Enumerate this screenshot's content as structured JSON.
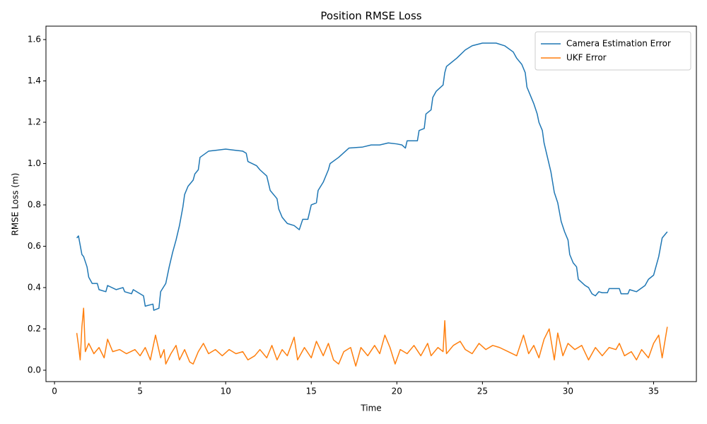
{
  "chart_data": {
    "type": "line",
    "title": "Position RMSE Loss",
    "x_label": "Time",
    "y_label": "RMSE Loss (m)",
    "legend": "upper right",
    "grid": false,
    "xlim": [
      -0.5,
      37.5
    ],
    "ylim": [
      -0.055,
      1.665
    ],
    "xticks": [
      0,
      5,
      10,
      15,
      20,
      25,
      30,
      35
    ],
    "yticks": [
      {
        "value": 0,
        "label": "0.0"
      },
      0.2,
      0.4,
      0.6,
      0.8,
      {
        "value": 1,
        "label": "1.0"
      },
      1.2,
      1.4,
      1.6
    ],
    "series": [
      {
        "name": "Camera Estimation Error",
        "color": "#1f77b4",
        "x": [
          1.3,
          1.4,
          1.6,
          1.7,
          1.9,
          2.0,
          2.2,
          2.5,
          2.6,
          3.0,
          3.1,
          3.6,
          4.0,
          4.1,
          4.5,
          4.6,
          5.0,
          5.2,
          5.3,
          5.75,
          5.8,
          6.1,
          6.2,
          6.5,
          6.7,
          6.9,
          7.1,
          7.3,
          7.5,
          7.6,
          7.8,
          8.1,
          8.2,
          8.4,
          8.5,
          9.0,
          9.5,
          10.0,
          10.5,
          11.0,
          11.2,
          11.3,
          11.8,
          12.0,
          12.4,
          12.6,
          13.0,
          13.1,
          13.3,
          13.6,
          14.0,
          14.3,
          14.5,
          14.8,
          15.0,
          15.3,
          15.4,
          15.7,
          16.0,
          16.1,
          16.6,
          17.0,
          17.2,
          18.0,
          18.5,
          19.0,
          19.5,
          20.0,
          20.3,
          20.5,
          20.6,
          21.2,
          21.3,
          21.6,
          21.7,
          22.0,
          22.1,
          22.3,
          22.7,
          22.8,
          22.9,
          23.5,
          24.0,
          24.4,
          25.0,
          25.8,
          26.3,
          26.8,
          27.0,
          27.3,
          27.5,
          27.6,
          27.8,
          28.0,
          28.2,
          28.3,
          28.5,
          28.6,
          28.8,
          29.0,
          29.2,
          29.4,
          29.6,
          29.8,
          30.0,
          30.1,
          30.3,
          30.5,
          30.6,
          31.0,
          31.2,
          31.4,
          31.6,
          31.8,
          32.0,
          32.3,
          32.4,
          33.0,
          33.1,
          33.5,
          33.6,
          34.0,
          34.5,
          34.7,
          35.0,
          35.3,
          35.5,
          35.8
        ],
        "values": [
          0.64,
          0.65,
          0.56,
          0.55,
          0.5,
          0.45,
          0.42,
          0.42,
          0.39,
          0.38,
          0.41,
          0.39,
          0.4,
          0.38,
          0.37,
          0.39,
          0.37,
          0.36,
          0.31,
          0.32,
          0.29,
          0.3,
          0.38,
          0.42,
          0.5,
          0.57,
          0.63,
          0.7,
          0.79,
          0.85,
          0.89,
          0.92,
          0.95,
          0.97,
          1.03,
          1.06,
          1.065,
          1.07,
          1.065,
          1.06,
          1.05,
          1.01,
          0.99,
          0.97,
          0.94,
          0.87,
          0.83,
          0.78,
          0.74,
          0.71,
          0.7,
          0.68,
          0.73,
          0.73,
          0.8,
          0.81,
          0.87,
          0.91,
          0.97,
          1.0,
          1.03,
          1.06,
          1.075,
          1.08,
          1.09,
          1.09,
          1.1,
          1.095,
          1.09,
          1.075,
          1.11,
          1.11,
          1.16,
          1.17,
          1.24,
          1.26,
          1.32,
          1.35,
          1.38,
          1.44,
          1.47,
          1.51,
          1.55,
          1.57,
          1.583,
          1.583,
          1.57,
          1.54,
          1.51,
          1.48,
          1.44,
          1.37,
          1.33,
          1.29,
          1.24,
          1.2,
          1.16,
          1.1,
          1.03,
          0.96,
          0.86,
          0.81,
          0.72,
          0.67,
          0.63,
          0.56,
          0.52,
          0.5,
          0.44,
          0.41,
          0.4,
          0.37,
          0.36,
          0.38,
          0.375,
          0.375,
          0.395,
          0.395,
          0.37,
          0.37,
          0.39,
          0.38,
          0.41,
          0.44,
          0.46,
          0.55,
          0.64,
          0.67
        ]
      },
      {
        "name": "UKF Error",
        "color": "#ff7f0e",
        "x": [
          1.3,
          1.4,
          1.5,
          1.6,
          1.7,
          1.8,
          2.0,
          2.3,
          2.6,
          2.9,
          3.1,
          3.4,
          3.8,
          4.2,
          4.7,
          5.0,
          5.3,
          5.6,
          5.9,
          6.2,
          6.4,
          6.5,
          6.8,
          7.1,
          7.3,
          7.6,
          7.9,
          8.1,
          8.4,
          8.7,
          9.0,
          9.4,
          9.8,
          10.2,
          10.6,
          11.0,
          11.3,
          11.7,
          12.0,
          12.4,
          12.7,
          13.0,
          13.3,
          13.6,
          14.0,
          14.2,
          14.6,
          15.0,
          15.3,
          15.7,
          16.0,
          16.3,
          16.6,
          16.9,
          17.3,
          17.6,
          17.9,
          18.3,
          18.7,
          19.0,
          19.3,
          19.6,
          19.9,
          20.2,
          20.6,
          21.0,
          21.4,
          21.8,
          22.0,
          22.4,
          22.7,
          22.8,
          22.9,
          23.3,
          23.7,
          24.0,
          24.4,
          24.8,
          25.2,
          25.6,
          26.0,
          26.5,
          27.0,
          27.4,
          27.7,
          28.0,
          28.3,
          28.6,
          28.9,
          29.2,
          29.4,
          29.7,
          30.0,
          30.4,
          30.8,
          31.2,
          31.6,
          32.0,
          32.4,
          32.8,
          33.0,
          33.3,
          33.7,
          34.0,
          34.3,
          34.7,
          35.0,
          35.3,
          35.5,
          35.8
        ],
        "values": [
          0.18,
          0.12,
          0.05,
          0.21,
          0.3,
          0.09,
          0.13,
          0.08,
          0.11,
          0.06,
          0.15,
          0.09,
          0.1,
          0.08,
          0.1,
          0.07,
          0.11,
          0.05,
          0.17,
          0.06,
          0.1,
          0.03,
          0.08,
          0.12,
          0.05,
          0.1,
          0.04,
          0.03,
          0.09,
          0.13,
          0.08,
          0.1,
          0.07,
          0.1,
          0.08,
          0.09,
          0.05,
          0.07,
          0.1,
          0.06,
          0.12,
          0.05,
          0.1,
          0.07,
          0.16,
          0.05,
          0.11,
          0.06,
          0.14,
          0.07,
          0.13,
          0.05,
          0.03,
          0.09,
          0.11,
          0.02,
          0.11,
          0.07,
          0.12,
          0.08,
          0.17,
          0.11,
          0.03,
          0.1,
          0.08,
          0.12,
          0.07,
          0.13,
          0.07,
          0.11,
          0.09,
          0.24,
          0.08,
          0.12,
          0.14,
          0.1,
          0.08,
          0.13,
          0.1,
          0.12,
          0.11,
          0.09,
          0.07,
          0.17,
          0.08,
          0.12,
          0.06,
          0.15,
          0.2,
          0.05,
          0.18,
          0.07,
          0.13,
          0.1,
          0.12,
          0.05,
          0.11,
          0.07,
          0.11,
          0.1,
          0.13,
          0.07,
          0.09,
          0.05,
          0.1,
          0.06,
          0.13,
          0.17,
          0.06,
          0.21
        ]
      }
    ]
  }
}
